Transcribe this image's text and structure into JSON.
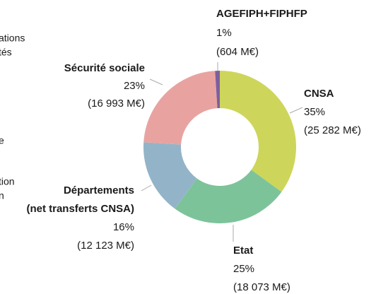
{
  "chart_data": {
    "type": "donut",
    "categories": [
      "CNSA",
      "Etat",
      [
        "Départements",
        "(net transferts CNSA)"
      ],
      "Sécurité sociale",
      "AGEFIPH+FIPHFP"
    ],
    "values": [
      35,
      25,
      16,
      23,
      1
    ],
    "value_labels": [
      "35%",
      "25%",
      "16%",
      "23%",
      "1%"
    ],
    "amounts": [
      25282,
      18073,
      12123,
      16993,
      604
    ],
    "amount_labels": [
      "(25 282 M€)",
      "(18 073 M€)",
      "(12 123 M€)",
      "(16 993 M€)",
      "(604 M€)"
    ],
    "colors": [
      "#cdd65a",
      "#7dc39a",
      "#93b4c8",
      "#e8a3a0",
      "#7d5f9e"
    ]
  },
  "cropped_text": [
    "ations",
    "tés",
    "e",
    "tion",
    "n"
  ]
}
